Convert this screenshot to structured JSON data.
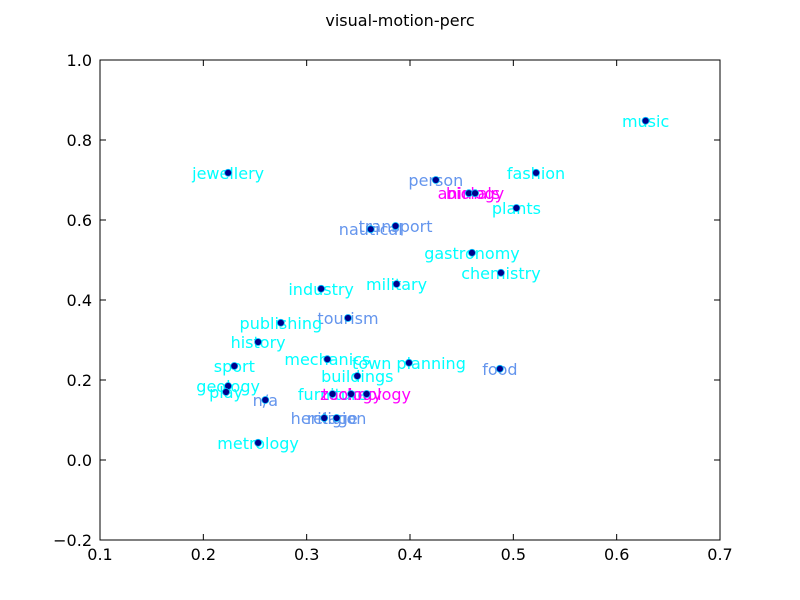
{
  "chart_data": {
    "type": "scatter",
    "title": "visual-motion-perc",
    "xlabel": "",
    "ylabel": "",
    "xlim": [
      0.1,
      0.7
    ],
    "ylim": [
      -0.2,
      1.0
    ],
    "xticks": [
      0.1,
      0.2,
      0.3,
      0.4,
      0.5,
      0.6,
      0.7
    ],
    "yticks": [
      -0.2,
      0.0,
      0.2,
      0.4,
      0.6,
      0.8,
      1.0
    ],
    "xtick_labels": [
      "0.1",
      "0.2",
      "0.3",
      "0.4",
      "0.5",
      "0.6",
      "0.7"
    ],
    "ytick_labels": [
      "−0.2",
      "0.0",
      "0.2",
      "0.4",
      "0.6",
      "0.8",
      "1.0"
    ],
    "grid": false,
    "marker_color": "#00008b",
    "points": [
      {
        "label": "music",
        "x": 0.628,
        "y": 0.848,
        "color": "#00ffff"
      },
      {
        "label": "jewellery",
        "x": 0.224,
        "y": 0.718,
        "color": "#00ffff"
      },
      {
        "label": "fashion",
        "x": 0.522,
        "y": 0.718,
        "color": "#00ffff"
      },
      {
        "label": "person",
        "x": 0.425,
        "y": 0.7,
        "color": "#6495ed"
      },
      {
        "label": "animals",
        "x": 0.457,
        "y": 0.667,
        "color": "#ff00ff"
      },
      {
        "label": "biology",
        "x": 0.463,
        "y": 0.667,
        "color": "#ff00ff"
      },
      {
        "label": "plants",
        "x": 0.503,
        "y": 0.63,
        "color": "#00ffff"
      },
      {
        "label": "transport",
        "x": 0.386,
        "y": 0.585,
        "color": "#6495ed"
      },
      {
        "label": "nautical",
        "x": 0.362,
        "y": 0.577,
        "color": "#6495ed"
      },
      {
        "label": "gastronomy",
        "x": 0.46,
        "y": 0.518,
        "color": "#00ffff"
      },
      {
        "label": "chemistry",
        "x": 0.488,
        "y": 0.468,
        "color": "#00ffff"
      },
      {
        "label": "military",
        "x": 0.387,
        "y": 0.44,
        "color": "#00ffff"
      },
      {
        "label": "industry",
        "x": 0.314,
        "y": 0.428,
        "color": "#00ffff"
      },
      {
        "label": "tourism",
        "x": 0.34,
        "y": 0.355,
        "color": "#6495ed"
      },
      {
        "label": "publishing",
        "x": 0.275,
        "y": 0.343,
        "color": "#00ffff"
      },
      {
        "label": "history",
        "x": 0.253,
        "y": 0.295,
        "color": "#00ffff"
      },
      {
        "label": "mechanics",
        "x": 0.32,
        "y": 0.252,
        "color": "#00ffff"
      },
      {
        "label": "town planning",
        "x": 0.399,
        "y": 0.243,
        "color": "#00ffff"
      },
      {
        "label": "sport",
        "x": 0.23,
        "y": 0.235,
        "color": "#00ffff"
      },
      {
        "label": "food",
        "x": 0.487,
        "y": 0.228,
        "color": "#6495ed"
      },
      {
        "label": "buildings",
        "x": 0.349,
        "y": 0.21,
        "color": "#00ffff"
      },
      {
        "label": "geology",
        "x": 0.224,
        "y": 0.185,
        "color": "#00ffff"
      },
      {
        "label": "play",
        "x": 0.222,
        "y": 0.17,
        "color": "#00ffff"
      },
      {
        "label": "furniture",
        "x": 0.325,
        "y": 0.165,
        "color": "#00ffff"
      },
      {
        "label": "zoology",
        "x": 0.343,
        "y": 0.165,
        "color": "#ff00ff"
      },
      {
        "label": "technology",
        "x": 0.358,
        "y": 0.165,
        "color": "#ff00ff"
      },
      {
        "label": "n/a",
        "x": 0.26,
        "y": 0.15,
        "color": "#6495ed"
      },
      {
        "label": "heritage",
        "x": 0.317,
        "y": 0.105,
        "color": "#6495ed"
      },
      {
        "label": "religion",
        "x": 0.329,
        "y": 0.105,
        "color": "#6495ed"
      },
      {
        "label": "metrology",
        "x": 0.253,
        "y": 0.043,
        "color": "#00ffff"
      }
    ]
  }
}
